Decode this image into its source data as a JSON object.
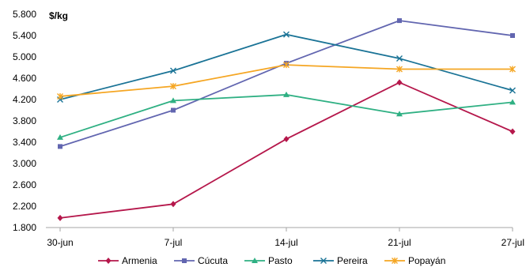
{
  "chart_data": {
    "type": "line",
    "title": "",
    "xlabel": "",
    "ylabel": "$/kg",
    "ylim": [
      1800,
      5800
    ],
    "yticks": [
      1800,
      2200,
      2600,
      3000,
      3400,
      3800,
      4200,
      4600,
      5000,
      5400,
      5800
    ],
    "ytick_labels": [
      "1.800",
      "2.200",
      "2.600",
      "3.000",
      "3.400",
      "3.800",
      "4.200",
      "4.600",
      "5.000",
      "5.400",
      "5.800"
    ],
    "categories": [
      "30-jun",
      "7-jul",
      "14-jul",
      "21-jul",
      "27-jul"
    ],
    "grid": false,
    "legend": "bottom",
    "series": [
      {
        "name": "Armenia",
        "color": "#b5174b",
        "marker": "diamond",
        "values": [
          1980,
          2240,
          3460,
          4520,
          3600
        ]
      },
      {
        "name": "Cúcuta",
        "color": "#6266b0",
        "marker": "square",
        "values": [
          3320,
          4000,
          4880,
          5680,
          5400
        ]
      },
      {
        "name": "Pasto",
        "color": "#2fb083",
        "marker": "triangle",
        "values": [
          3490,
          4180,
          4290,
          3930,
          4150
        ]
      },
      {
        "name": "Pereira",
        "color": "#1a7396",
        "marker": "x",
        "values": [
          4200,
          4740,
          5420,
          4970,
          4370
        ]
      },
      {
        "name": "Popayán",
        "color": "#f5a623",
        "marker": "star",
        "values": [
          4260,
          4450,
          4850,
          4770,
          4770
        ]
      }
    ]
  }
}
